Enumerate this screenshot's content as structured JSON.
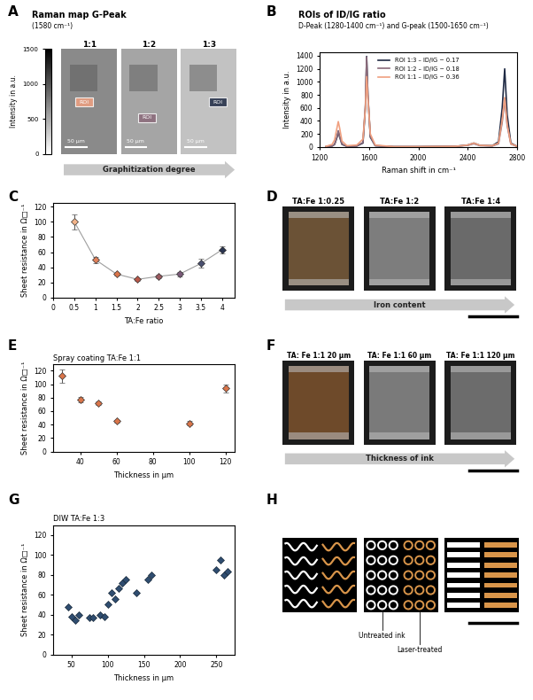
{
  "chart_data": [
    {
      "panel_label": "A",
      "type": "image",
      "title": "Raman map G-Peak",
      "subtitle": "(1580 cm⁻¹)",
      "images": [
        "1:1",
        "1:2",
        "1:3"
      ],
      "roi_label": "ROI",
      "colors": [
        "#f0a080",
        "#8a6a7a",
        "#1f2a44"
      ],
      "scale_bar": "50 µm",
      "arrow_text": "Graphitization degree",
      "colorbar": {
        "label": "Intensity in a.u.",
        "range": [
          0,
          1500
        ],
        "ticks": [
          0,
          500,
          1000,
          1500
        ]
      }
    },
    {
      "panel_label": "B",
      "type": "line",
      "title": "ROIs of ID/IG ratio",
      "subtitle": "D-Peak (1280-1400 cm⁻¹) and G-peak (1500-1650 cm⁻¹)",
      "x_label": "Raman shift in cm⁻¹",
      "y_label": "Intensity in a.u.",
      "xlim": [
        1200,
        2800
      ],
      "xticks": [
        1200,
        1600,
        2000,
        2400,
        2800
      ],
      "ylim": [
        0,
        1450
      ],
      "yticks": [
        0,
        200,
        400,
        600,
        800,
        1000,
        1200,
        1400
      ],
      "legend": "upper center",
      "x": [
        1250,
        1300,
        1320,
        1340,
        1350,
        1360,
        1380,
        1420,
        1500,
        1550,
        1570,
        1580,
        1590,
        1610,
        1650,
        1800,
        2000,
        2300,
        2400,
        2450,
        2500,
        2600,
        2650,
        2680,
        2700,
        2720,
        2750,
        2800
      ],
      "series": [
        {
          "name": "ROI 1:3 – ID/IG ~ 0.17",
          "color": "#1f2a44",
          "values": [
            5,
            15,
            40,
            150,
            240,
            160,
            40,
            10,
            15,
            60,
            600,
            1390,
            800,
            150,
            20,
            5,
            5,
            10,
            30,
            60,
            25,
            20,
            80,
            600,
            1200,
            500,
            60,
            10
          ]
        },
        {
          "name": "ROI 1:2 – ID/IG ~ 0.18",
          "color": "#8a6a7a",
          "values": [
            5,
            15,
            40,
            160,
            250,
            170,
            45,
            10,
            15,
            70,
            650,
            1380,
            820,
            160,
            20,
            5,
            5,
            10,
            25,
            50,
            20,
            15,
            50,
            380,
            750,
            330,
            45,
            10
          ]
        },
        {
          "name": "ROI 1:1 – ID/IG ~ 0.36",
          "color": "#f0a080",
          "values": [
            10,
            40,
            110,
            300,
            390,
            300,
            90,
            20,
            30,
            120,
            600,
            1080,
            750,
            200,
            30,
            5,
            5,
            10,
            30,
            60,
            25,
            20,
            60,
            420,
            760,
            350,
            50,
            10
          ]
        }
      ]
    },
    {
      "panel_label": "C",
      "type": "line",
      "x_label": "TA:Fe ratio",
      "y_label": "Sheet resistance in Ω□⁻¹",
      "xlim": [
        0,
        4.3
      ],
      "xticks": [
        0,
        0.5,
        1,
        1.5,
        2,
        2.5,
        3,
        3.5,
        4
      ],
      "ylim": [
        0,
        125
      ],
      "yticks": [
        0,
        20,
        40,
        60,
        80,
        100,
        120
      ],
      "x": [
        0.5,
        1,
        1.5,
        2,
        2.5,
        3,
        3.5,
        4
      ],
      "values": [
        100,
        50,
        31,
        24,
        28,
        31,
        45,
        63
      ],
      "errors": [
        10,
        4,
        2,
        2,
        2,
        3,
        6,
        5
      ],
      "colors": [
        "#f2b48a",
        "#e0805a",
        "#d9754a",
        "#b8584a",
        "#9a5a60",
        "#7a5a78",
        "#4a5070",
        "#2a3550"
      ],
      "color": "#9e9e9e",
      "marker": "diamond",
      "line_style": "solid"
    },
    {
      "panel_label": "D",
      "type": "image",
      "images": [
        "TA:Fe 1:0.25",
        "TA:Fe 1:2",
        "TA:Fe 1:4"
      ],
      "arrow_text": "Iron content"
    },
    {
      "panel_label": "E",
      "type": "scatter",
      "title": "Spray coating TA:Fe 1:1",
      "x_label": "Thickness in µm",
      "y_label": "Sheet resistance in Ω□⁻¹",
      "xlim": [
        25,
        125
      ],
      "xticks": [
        40,
        60,
        80,
        100,
        120
      ],
      "ylim": [
        0,
        130
      ],
      "yticks": [
        0,
        20,
        40,
        60,
        80,
        100,
        120
      ],
      "x": [
        30,
        40,
        50,
        60,
        100,
        120
      ],
      "values": [
        112,
        77,
        72,
        45,
        42,
        94
      ],
      "errors": [
        10,
        4,
        3,
        2,
        3,
        6
      ],
      "color": "#d9754a",
      "marker": "diamond"
    },
    {
      "panel_label": "F",
      "type": "image",
      "images": [
        "TA: Fe 1:1 20 µm",
        "TA: Fe 1:1 60 µm",
        "TA: Fe 1:1 120 µm"
      ],
      "arrow_text": "Thickness of ink"
    },
    {
      "panel_label": "G",
      "type": "scatter",
      "title": "DIW TA:Fe 1:3",
      "x_label": "Thickness in µm",
      "y_label": "Sheet resistance in Ω□⁻¹",
      "xlim": [
        25,
        275
      ],
      "xticks": [
        50,
        100,
        150,
        200,
        250
      ],
      "ylim": [
        0,
        130
      ],
      "yticks": [
        0,
        20,
        40,
        60,
        80,
        100,
        120
      ],
      "x": [
        45,
        50,
        55,
        60,
        75,
        80,
        90,
        95,
        100,
        105,
        110,
        115,
        120,
        125,
        140,
        155,
        160,
        250,
        255,
        260,
        265
      ],
      "values": [
        48,
        38,
        34,
        40,
        37,
        37,
        40,
        38,
        50,
        62,
        56,
        66,
        72,
        75,
        62,
        75,
        80,
        85,
        95,
        80,
        83
      ],
      "color": "#2f4d70",
      "marker": "diamond"
    },
    {
      "panel_label": "H",
      "type": "image",
      "labels": [
        "Untreated ink",
        "Laser-treated"
      ]
    }
  ]
}
